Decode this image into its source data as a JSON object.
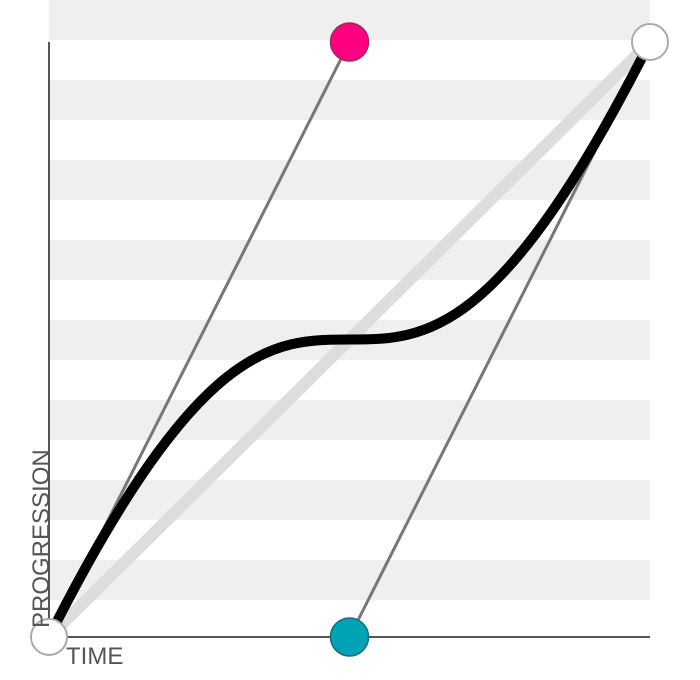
{
  "editor": {
    "x_axis_label": "TIME",
    "y_axis_label": "PROGRESSION"
  },
  "curve": {
    "type": "cubic-bezier",
    "control_point_1": [
      0.5,
      1.0
    ],
    "control_point_2": [
      0.5,
      0.0
    ],
    "color": "#000000",
    "linear_reference_color": "#dddddd"
  },
  "handles": {
    "start_color": "#ffffff",
    "end_color": "#ffffff",
    "control_1_color": "#ff0080",
    "control_2_color": "#00a2b5",
    "guide_line_color": "#777777"
  },
  "background": {
    "stripe_color": "#efefef"
  }
}
